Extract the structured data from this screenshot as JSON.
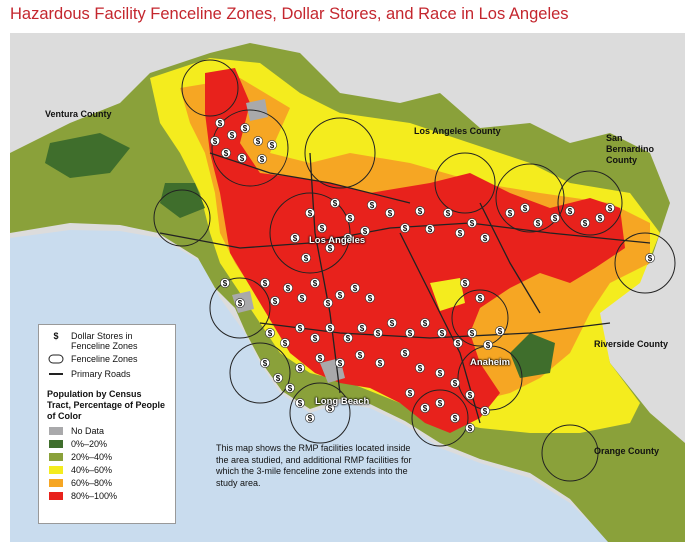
{
  "title": "Hazardous Facility Fenceline Zones, Dollar Stores, and Race in Los Angeles",
  "places": {
    "ventura": "Ventura County",
    "la_county": "Los Angeles County",
    "san_bernardino": "San Bernardino County",
    "riverside": "Riverside County",
    "orange": "Orange County"
  },
  "cities": {
    "los_angeles": "Los Angeles",
    "anaheim": "Anaheim",
    "long_beach": "Long Beach"
  },
  "legend": {
    "dollar_symbol": "$",
    "dollar_stores": "Dollar Stores in Fenceline Zones",
    "fenceline": "Fenceline Zones",
    "roads": "Primary Roads",
    "population_title": "Population by Census Tract, Percentage of People of Color",
    "classes": [
      {
        "label": "No Data",
        "color": "#a9a9ab"
      },
      {
        "label": "0%–20%",
        "color": "#3f6e2c"
      },
      {
        "label": "20%–40%",
        "color": "#8aa13a"
      },
      {
        "label": "40%–60%",
        "color": "#f4ec1e"
      },
      {
        "label": "60%–80%",
        "color": "#f6a623"
      },
      {
        "label": "80%–100%",
        "color": "#e8221c"
      }
    ]
  },
  "note": "This map shows the RMP facilities located inside the area studied, and additional RMP facilities for which the 3-mile fenceline zone extends into the study area.",
  "colors": {
    "title": "#c4262e",
    "ocean": "#c9dcee",
    "outside": "#dcdcdc",
    "roads": "#222222",
    "fenceline": "#222222"
  }
}
